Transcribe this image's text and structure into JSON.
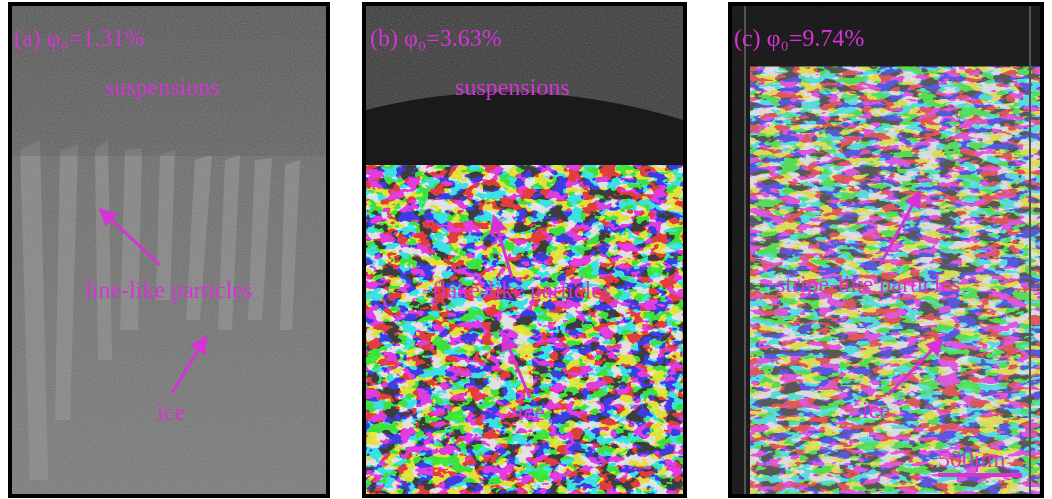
{
  "panels": [
    {
      "title": "(a) φ₀=1.31%",
      "labels": [
        "suspensions",
        "line-like particles",
        "ice"
      ]
    },
    {
      "title": "(b) φ₀=3.63%",
      "labels": [
        "suspensions",
        "flake-like particles",
        "ice"
      ]
    },
    {
      "title": "(c) φ₀=9.74%",
      "labels": [
        "stripe-like particles",
        "ice"
      ],
      "scale_bar": "500μm"
    }
  ]
}
